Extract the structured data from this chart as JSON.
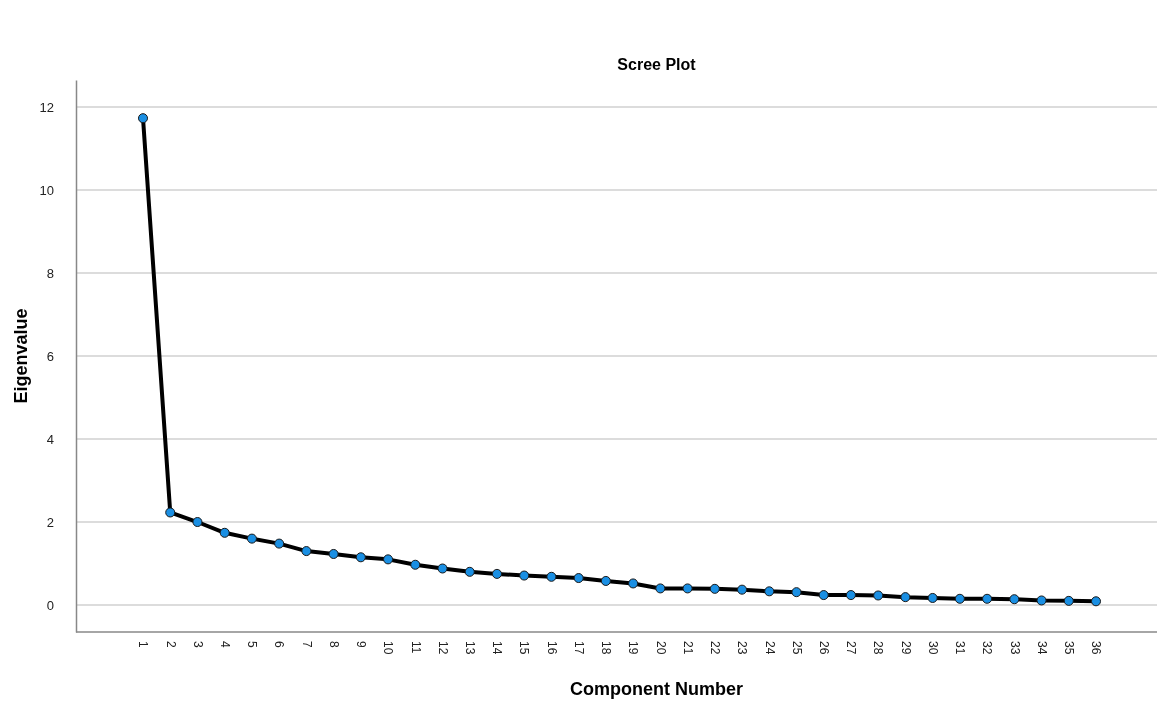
{
  "chart_data": {
    "type": "line",
    "title": "Scree Plot",
    "xlabel": "Component Number",
    "ylabel": "Eigenvalue",
    "categories": [
      "1",
      "2",
      "3",
      "4",
      "5",
      "6",
      "7",
      "8",
      "9",
      "10",
      "11",
      "12",
      "13",
      "14",
      "15",
      "16",
      "17",
      "18",
      "19",
      "20",
      "21",
      "22",
      "23",
      "24",
      "25",
      "26",
      "27",
      "28",
      "29",
      "30",
      "31",
      "32",
      "33",
      "34",
      "35",
      "36"
    ],
    "series": [
      {
        "color": "#000000",
        "values": [
          11.73,
          2.23,
          2.0,
          1.74,
          1.6,
          1.48,
          1.3,
          1.23,
          1.15,
          1.1,
          0.97,
          0.88,
          0.8,
          0.75,
          0.71,
          0.68,
          0.65,
          0.58,
          0.52,
          0.4,
          0.4,
          0.39,
          0.37,
          0.33,
          0.31,
          0.24,
          0.24,
          0.23,
          0.19,
          0.17,
          0.15,
          0.15,
          0.14,
          0.11,
          0.1,
          0.09
        ]
      }
    ],
    "ylim": [
      -0.65,
      12.65
    ],
    "yticks": [
      0,
      2,
      4,
      6,
      8,
      10,
      12
    ],
    "grid": "y",
    "marker": "circle",
    "line_style": "solid"
  }
}
